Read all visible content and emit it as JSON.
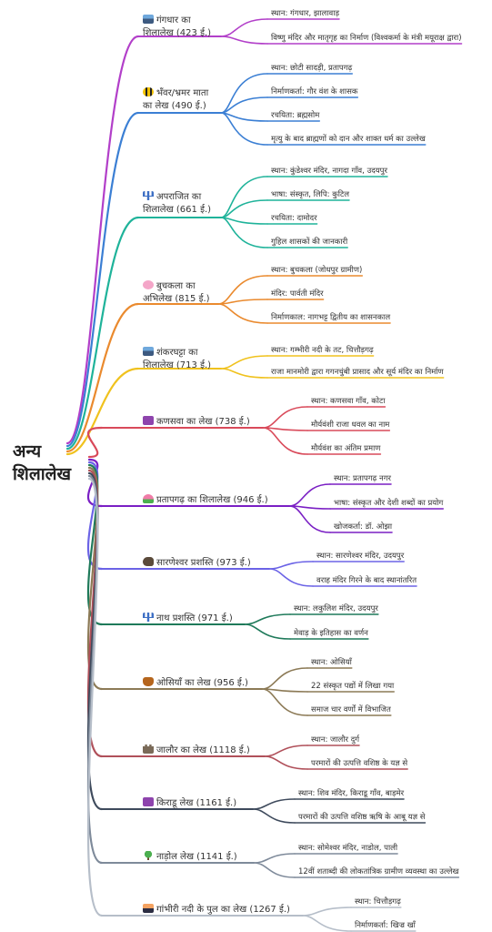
{
  "root": {
    "line1": "अन्य",
    "line2": "शिलालेख"
  },
  "branches": [
    {
      "icon": "mountain-lake-icon",
      "title": [
        "गंगधार का",
        "शिलालेख (423 ई.)"
      ],
      "color": "#b23fc9",
      "leaves": [
        "स्थान: गंगधार, झालावाड़",
        "विष्णु मंदिर और मातृगृह का निर्माण (विश्वकर्मा के मंत्री मयूराक्ष द्वारा)"
      ]
    },
    {
      "icon": "bee-icon",
      "title": [
        "भँवर/भ्रमर माता",
        "का लेख (490 ई.)"
      ],
      "color": "#3b7fd4",
      "leaves": [
        "स्थान: छोटी सादड़ी, प्रतापगढ़",
        "निर्माणकर्ता: गौर वंश के शासक",
        "रचयिता: ब्रह्मसोम",
        "मृत्यु के बाद ब्राह्मणों को दान और शाक्त धर्म का उल्लेख"
      ]
    },
    {
      "icon": "trident-icon",
      "title": [
        "अपराजित का",
        "शिलालेख (661 ई.)"
      ],
      "color": "#1fb39a",
      "leaves": [
        "स्थान: कुंडेश्वर मंदिर, नागदा गाँव, उदयपुर",
        "भाषा: संस्कृत, लिपि: कुटिल",
        "रचयिता: दामोदर",
        "गुहिल शासकों की जानकारी"
      ]
    },
    {
      "icon": "blossom-icon",
      "title": [
        "बुचकला का",
        "अभिलेख (815 ई.)"
      ],
      "color": "#ea8a2e",
      "leaves": [
        "स्थान: बुचकला (जोधपुर ग्रामीण)",
        "मंदिर: पार्वती मंदिर",
        "निर्माणकाल: नागभट्ट द्वितीय का शासनकाल"
      ]
    },
    {
      "icon": "mountain-lake-icon",
      "title": [
        "शंकरघट्टा का",
        "शिलालेख (713 ई.)"
      ],
      "color": "#f0c21e",
      "leaves": [
        "स्थान: गम्भीरी नदी के तट, चित्तौड़गढ़",
        "राजा मानमोरी द्वारा गगनचुंबी प्रासाद और सूर्य मंदिर का निर्माण"
      ]
    },
    {
      "icon": "om-icon",
      "title": [
        "कणसवा का लेख (738 ई.)"
      ],
      "color": "#d94a5a",
      "leaves": [
        "स्थान: कणसवा गाँव, कोटा",
        "मौर्यवंशी राजा धवल का नाम",
        "मौर्यवंश का अंतिम प्रमाण"
      ]
    },
    {
      "icon": "lotus-icon",
      "title": [
        "प्रतापगढ़ का शिलालेख (946 ई.)"
      ],
      "color": "#7a1fc4",
      "leaves": [
        "स्थान: प्रतापगढ़ नगर",
        "भाषा: संस्कृत और देशी शब्दों का प्रयोग",
        "खोजकर्ता: डॉ. ओझा"
      ]
    },
    {
      "icon": "rock-icon",
      "title": [
        "सारणेश्वर प्रशस्ति (973 ई.)"
      ],
      "color": "#6b63e6",
      "leaves": [
        "स्थान: सारणेश्वर मंदिर, उदयपुर",
        "वराह मंदिर गिरने के बाद स्थानांतरित"
      ]
    },
    {
      "icon": "trident-icon",
      "title": [
        "नाथ प्रशस्ति (971 ई.)"
      ],
      "color": "#1f7a5a",
      "leaves": [
        "स्थान: लकुलिश मंदिर, उदयपुर",
        "मेवाड़ के इतिहास का वर्णन"
      ]
    },
    {
      "icon": "vase-icon",
      "title": [
        "ओसियाँ का लेख (956 ई.)"
      ],
      "color": "#8c7a56",
      "leaves": [
        "स्थान: ओसियाँ",
        "22 संस्कृत पद्यों में लिखा गया",
        "समाज चार वर्णों में विभाजित"
      ]
    },
    {
      "icon": "fort-icon",
      "title": [
        "जालौर का लेख (1118 ई.)"
      ],
      "color": "#b0505a",
      "leaves": [
        "स्थान: जालौर दुर्ग",
        "परमारों की उत्पत्ति वशिष्ठ के यज्ञ से"
      ]
    },
    {
      "icon": "om-icon",
      "title": [
        "किराडू लेख (1161 ई.)"
      ],
      "color": "#3e4a5c",
      "leaves": [
        "स्थान: शिव मंदिर, किराडू गाँव, बाड़मेर",
        "परमारों की उत्पत्ति वशिष्ठ ऋषि के आबू यज्ञ से"
      ]
    },
    {
      "icon": "tree-icon",
      "title": [
        "नाड़ोल लेख (1141 ई.)"
      ],
      "color": "#7e8a9a",
      "leaves": [
        "स्थान: सोमेश्वर मंदिर, नाडोल, पाली",
        "12वीं शताब्दी की लोकतांत्रिक ग्रामीण व्यवस्था का उल्लेख"
      ]
    },
    {
      "icon": "bridge-icon",
      "title": [
        "गांभीरी नदी के पुल का लेख (1267 ई.)"
      ],
      "color": "#b6bec9",
      "leaves": [
        "स्थान: चित्तौड़गढ़",
        "निर्माणकर्ता: खिज्र खाँ"
      ]
    }
  ]
}
